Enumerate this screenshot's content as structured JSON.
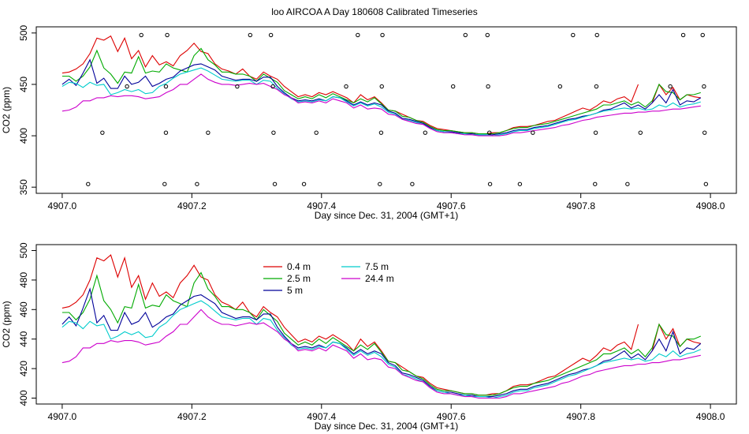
{
  "title": "loo AIRCOA A  Day 180608  Calibrated Timeseries",
  "chart_data": [
    {
      "type": "scatter",
      "panel": "top",
      "xlabel": "Day since Dec. 31, 2004 (GMT+1)",
      "ylabel": "CO2 (ppm)",
      "xlim": [
        4907.0,
        4908.0
      ],
      "ylim": [
        350,
        500
      ],
      "xticks": [
        "4907.0",
        "4907.2",
        "4907.4",
        "4907.6",
        "4907.8",
        "4908.0"
      ],
      "yticks": [
        "350",
        "400",
        "450",
        "500"
      ],
      "series": [
        {
          "key": "s04",
          "color": "#dd0000",
          "values": [
            461,
            462,
            465,
            470,
            480,
            495,
            493,
            497,
            482,
            495,
            475,
            483,
            467,
            478,
            469,
            472,
            468,
            478,
            483,
            490,
            482,
            480,
            470,
            465,
            463,
            460,
            465,
            458,
            455,
            462,
            458,
            455,
            448,
            443,
            438,
            440,
            438,
            442,
            440,
            443,
            440,
            437,
            432,
            440,
            435,
            438,
            432,
            425,
            424,
            421,
            418,
            415,
            414,
            410,
            407,
            406,
            405,
            404,
            403,
            403,
            402,
            402,
            403,
            403,
            405,
            408,
            409,
            409,
            410,
            412,
            414,
            415,
            418,
            421,
            424,
            427,
            425,
            429,
            434,
            432,
            436,
            438,
            433,
            450,
            null,
            432,
            450,
            440,
            447,
            435,
            440,
            438,
            437
          ]
        },
        {
          "key": "s25",
          "color": "#00aa00",
          "values": [
            458,
            458,
            453,
            458,
            467,
            483,
            466,
            460,
            451,
            462,
            461,
            477,
            461,
            463,
            462,
            470,
            466,
            464,
            462,
            478,
            485,
            474,
            469,
            462,
            462,
            460,
            460,
            458,
            453,
            460,
            456,
            452,
            444,
            440,
            436,
            438,
            436,
            440,
            437,
            441,
            438,
            435,
            432,
            436,
            433,
            437,
            431,
            425,
            424,
            419,
            418,
            415,
            413,
            409,
            406,
            405,
            405,
            404,
            403,
            403,
            402,
            402,
            402,
            403,
            405,
            407,
            408,
            408,
            410,
            411,
            412,
            414,
            416,
            418,
            420,
            422,
            424,
            426,
            430,
            430,
            432,
            434,
            430,
            433,
            428,
            434,
            450,
            443,
            442,
            435,
            440,
            440,
            442
          ]
        },
        {
          "key": "s5",
          "color": "#000099",
          "values": [
            450,
            455,
            449,
            461,
            474,
            451,
            456,
            446,
            446,
            458,
            450,
            452,
            458,
            448,
            451,
            455,
            457,
            463,
            466,
            469,
            470,
            467,
            464,
            458,
            456,
            454,
            455,
            455,
            453,
            457,
            457,
            448,
            442,
            437,
            434,
            435,
            434,
            436,
            434,
            438,
            437,
            434,
            430,
            433,
            430,
            432,
            430,
            424,
            422,
            417,
            416,
            414,
            412,
            408,
            405,
            404,
            404,
            403,
            402,
            402,
            401,
            401,
            401,
            402,
            403,
            405,
            406,
            406,
            408,
            409,
            410,
            412,
            414,
            416,
            417,
            419,
            420,
            422,
            425,
            426,
            429,
            432,
            427,
            430,
            426,
            432,
            440,
            432,
            445,
            430,
            434,
            433,
            437
          ]
        },
        {
          "key": "s75",
          "color": "#00cccc",
          "values": [
            448,
            452,
            451,
            447,
            452,
            449,
            450,
            440,
            442,
            445,
            443,
            445,
            441,
            442,
            448,
            451,
            456,
            460,
            462,
            464,
            466,
            463,
            459,
            455,
            454,
            453,
            454,
            454,
            450,
            454,
            453,
            446,
            441,
            436,
            433,
            434,
            433,
            435,
            434,
            438,
            437,
            433,
            429,
            432,
            429,
            431,
            428,
            423,
            421,
            416,
            415,
            413,
            411,
            407,
            405,
            404,
            403,
            402,
            402,
            401,
            401,
            401,
            400,
            401,
            402,
            404,
            405,
            405,
            407,
            408,
            409,
            411,
            413,
            415,
            416,
            418,
            420,
            422,
            424,
            425,
            426,
            427,
            426,
            427,
            425,
            426,
            430,
            428,
            432,
            428,
            430,
            431,
            433
          ]
        },
        {
          "key": "s244",
          "color": "#cc00cc",
          "values": [
            424,
            425,
            428,
            434,
            434,
            437,
            437,
            439,
            438,
            439,
            439,
            438,
            436,
            437,
            438,
            442,
            445,
            450,
            450,
            455,
            460,
            455,
            452,
            450,
            450,
            449,
            450,
            451,
            450,
            451,
            448,
            445,
            440,
            437,
            432,
            433,
            432,
            434,
            432,
            436,
            434,
            432,
            427,
            430,
            426,
            427,
            426,
            421,
            420,
            416,
            414,
            412,
            411,
            407,
            404,
            403,
            403,
            402,
            401,
            401,
            400,
            400,
            400,
            400,
            401,
            403,
            403,
            404,
            405,
            406,
            407,
            408,
            410,
            411,
            413,
            415,
            416,
            418,
            419,
            420,
            421,
            422,
            422,
            423,
            423,
            424,
            424,
            425,
            426,
            426,
            427,
            428,
            429
          ]
        }
      ],
      "scatter_points": {
        "color": "#000000",
        "points": [
          [
            4907.04,
            353
          ],
          [
            4907.062,
            403
          ],
          [
            4907.1,
            448
          ],
          [
            4907.122,
            498
          ],
          [
            4907.158,
            353
          ],
          [
            4907.16,
            403
          ],
          [
            4907.16,
            448
          ],
          [
            4907.162,
            498
          ],
          [
            4907.208,
            353
          ],
          [
            4907.225,
            403
          ],
          [
            4907.27,
            448
          ],
          [
            4907.29,
            498
          ],
          [
            4907.322,
            498
          ],
          [
            4907.325,
            448
          ],
          [
            4907.326,
            403
          ],
          [
            4907.328,
            353
          ],
          [
            4907.373,
            353
          ],
          [
            4907.392,
            403
          ],
          [
            4907.438,
            448
          ],
          [
            4907.456,
            498
          ],
          [
            4907.49,
            353
          ],
          [
            4907.492,
            403
          ],
          [
            4907.493,
            448
          ],
          [
            4907.494,
            498
          ],
          [
            4907.54,
            353
          ],
          [
            4907.56,
            403
          ],
          [
            4907.603,
            448
          ],
          [
            4907.622,
            498
          ],
          [
            4907.656,
            498
          ],
          [
            4907.657,
            448
          ],
          [
            4907.659,
            403
          ],
          [
            4907.66,
            353
          ],
          [
            4907.706,
            353
          ],
          [
            4907.726,
            403
          ],
          [
            4907.768,
            448
          ],
          [
            4907.788,
            498
          ],
          [
            4907.822,
            353
          ],
          [
            4907.823,
            403
          ],
          [
            4907.824,
            448
          ],
          [
            4907.825,
            498
          ],
          [
            4907.872,
            353
          ],
          [
            4907.892,
            403
          ],
          [
            4907.938,
            448
          ],
          [
            4907.958,
            498
          ],
          [
            4907.988,
            498
          ],
          [
            4907.99,
            448
          ],
          [
            4907.991,
            403
          ],
          [
            4907.993,
            353
          ]
        ]
      }
    },
    {
      "type": "line",
      "panel": "bottom",
      "xlabel": "Day since Dec. 31, 2004 (GMT+1)",
      "ylabel": "CO2 (ppm)",
      "xlim": [
        4907.0,
        4908.0
      ],
      "ylim": [
        400,
        500
      ],
      "xticks": [
        "4907.0",
        "4907.2",
        "4907.4",
        "4907.6",
        "4907.8",
        "4908.0"
      ],
      "yticks": [
        "400",
        "420",
        "440",
        "460",
        "480",
        "500"
      ],
      "legend": [
        {
          "key": "s04",
          "name": "0.4 m",
          "color": "#dd0000"
        },
        {
          "key": "s25",
          "name": "2.5 m",
          "color": "#00aa00"
        },
        {
          "key": "s5",
          "name": "5 m",
          "color": "#000099"
        },
        {
          "key": "s75",
          "name": "7.5 m",
          "color": "#00cccc"
        },
        {
          "key": "s244",
          "name": "24.4 m",
          "color": "#cc00cc"
        }
      ]
    }
  ]
}
